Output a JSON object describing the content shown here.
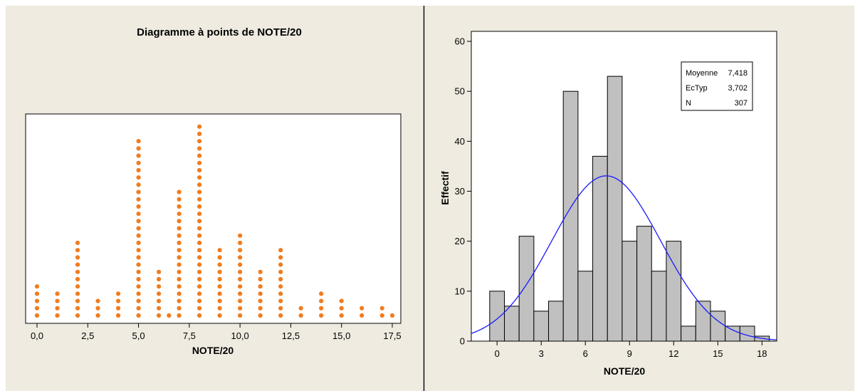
{
  "colors": {
    "background": "#efebe1",
    "dot": "#f07c1e",
    "bar": "#c0c0c0",
    "curve": "#1a1aff"
  },
  "chart_data": [
    {
      "type": "dotplot",
      "title": "Diagramme à points de NOTE/20",
      "xlabel": "NOTE/20",
      "xlim": [
        -0.75,
        18.2
      ],
      "ylim": [
        0,
        27
      ],
      "xticks": [
        0,
        2.5,
        5,
        7.5,
        10,
        12.5,
        15,
        17.5
      ],
      "xtick_labels": [
        "0,0",
        "2,5",
        "5,0",
        "7,5",
        "10,0",
        "12,5",
        "15,0",
        "17,5"
      ],
      "points": [
        {
          "x": 0,
          "count": 5
        },
        {
          "x": 1,
          "count": 4
        },
        {
          "x": 2,
          "count": 11
        },
        {
          "x": 3,
          "count": 3
        },
        {
          "x": 4,
          "count": 4
        },
        {
          "x": 5,
          "count": 25
        },
        {
          "x": 6,
          "count": 7
        },
        {
          "x": 6.5,
          "count": 1
        },
        {
          "x": 7,
          "count": 18
        },
        {
          "x": 8,
          "count": 27
        },
        {
          "x": 9,
          "count": 10
        },
        {
          "x": 10,
          "count": 12
        },
        {
          "x": 11,
          "count": 7
        },
        {
          "x": 12,
          "count": 10
        },
        {
          "x": 13,
          "count": 2
        },
        {
          "x": 14,
          "count": 4
        },
        {
          "x": 15,
          "count": 3
        },
        {
          "x": 16,
          "count": 2
        },
        {
          "x": 17,
          "count": 2
        },
        {
          "x": 17.5,
          "count": 1
        }
      ]
    },
    {
      "type": "bar",
      "subtype": "histogram",
      "xlabel": "NOTE/20",
      "ylabel": "Effectif",
      "xlim": [
        -1.75,
        19
      ],
      "ylim": [
        0,
        62
      ],
      "xticks": [
        0,
        3,
        6,
        9,
        12,
        15,
        18
      ],
      "yticks": [
        0,
        10,
        20,
        30,
        40,
        50,
        60
      ],
      "bin_width": 1,
      "bin_centers": [
        0,
        1,
        2,
        3,
        4,
        5,
        6,
        7,
        8,
        9,
        10,
        11,
        12,
        13,
        14,
        15,
        16,
        17,
        18
      ],
      "values": [
        10,
        7,
        21,
        6,
        8,
        50,
        14,
        37,
        53,
        20,
        23,
        14,
        20,
        3,
        8,
        6,
        3,
        3,
        1
      ],
      "fit": {
        "type": "normal",
        "mean": 7.418,
        "sd": 3.702,
        "n": 307
      },
      "legend": {
        "position": "top-right",
        "rows": [
          {
            "label": "Moyenne",
            "value": "7,418"
          },
          {
            "label": "EcTyp",
            "value": "3,702"
          },
          {
            "label": "N",
            "value": "307"
          }
        ]
      }
    }
  ]
}
